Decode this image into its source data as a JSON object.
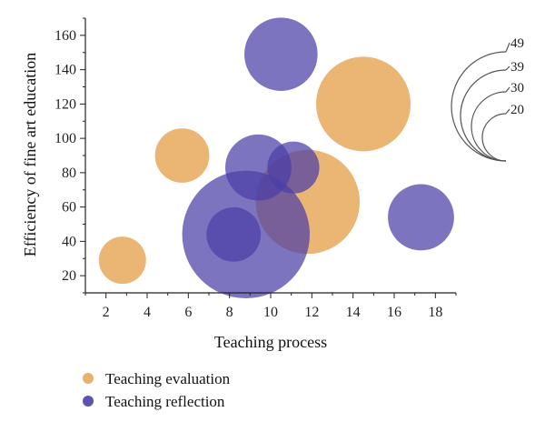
{
  "chart_data": {
    "type": "bubble",
    "xlabel": "Teaching process",
    "ylabel": "Efficiency of fine art education",
    "xlim": [
      1,
      19
    ],
    "ylim": [
      10,
      170
    ],
    "xticks": [
      2,
      4,
      6,
      8,
      10,
      12,
      14,
      16,
      18
    ],
    "yticks": [
      20,
      40,
      60,
      80,
      100,
      120,
      140,
      160
    ],
    "series": [
      {
        "name": "Teaching evaluation",
        "color": "#e8a85c",
        "points": [
          {
            "x": 2.8,
            "y": 29,
            "size": 20
          },
          {
            "x": 5.7,
            "y": 90,
            "size": 23
          },
          {
            "x": 11.8,
            "y": 63,
            "size": 44
          },
          {
            "x": 14.5,
            "y": 120,
            "size": 40
          }
        ]
      },
      {
        "name": "Teaching reflection",
        "color": "#4b3fa6",
        "points": [
          {
            "x": 10.5,
            "y": 149,
            "size": 31
          },
          {
            "x": 9.4,
            "y": 83,
            "size": 28
          },
          {
            "x": 11.1,
            "y": 83,
            "size": 22
          },
          {
            "x": 8.8,
            "y": 44,
            "size": 54
          },
          {
            "x": 8.2,
            "y": 44,
            "size": 23
          },
          {
            "x": 17.3,
            "y": 54,
            "size": 28
          }
        ]
      }
    ],
    "size_legend": {
      "values": [
        49,
        39,
        30,
        20
      ],
      "labels": [
        "49",
        "39",
        "30",
        "20"
      ]
    },
    "legend_position": "bottom-left",
    "grid": false
  }
}
